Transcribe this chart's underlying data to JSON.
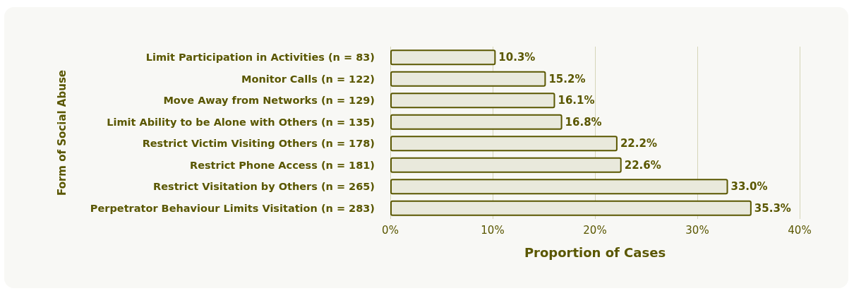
{
  "chart_data": {
    "type": "bar",
    "orientation": "horizontal",
    "xlabel": "Proportion of Cases",
    "ylabel": "Form of Social Abuse",
    "categories": [
      "Limit Participation in Activities (n = 83)",
      "Monitor Calls (n = 122)",
      "Move Away from Networks (n = 129)",
      "Limit Ability to be Alone with Others (n = 135)",
      "Restrict Victim Visiting Others (n = 178)",
      "Restrict Phone Access (n = 181)",
      "Restrict Visitation by Others (n = 265)",
      "Perpetrator Behaviour Limits Visitation (n = 283)"
    ],
    "values": [
      10.3,
      15.2,
      16.1,
      16.8,
      22.2,
      22.6,
      33.0,
      35.3
    ],
    "value_labels": [
      "10.3%",
      "15.2%",
      "16.1%",
      "16.8%",
      "22.2%",
      "22.6%",
      "33.0%",
      "35.3%"
    ],
    "color": "#e9e9dc",
    "xlim": [
      0,
      40
    ],
    "xticks": [
      {
        "value": 0,
        "label": "0%"
      },
      {
        "value": 10,
        "label": "10%"
      },
      {
        "value": 20,
        "label": "20%"
      },
      {
        "value": 30,
        "label": "30%"
      },
      {
        "value": 40,
        "label": "40%"
      }
    ],
    "grid": "x"
  }
}
